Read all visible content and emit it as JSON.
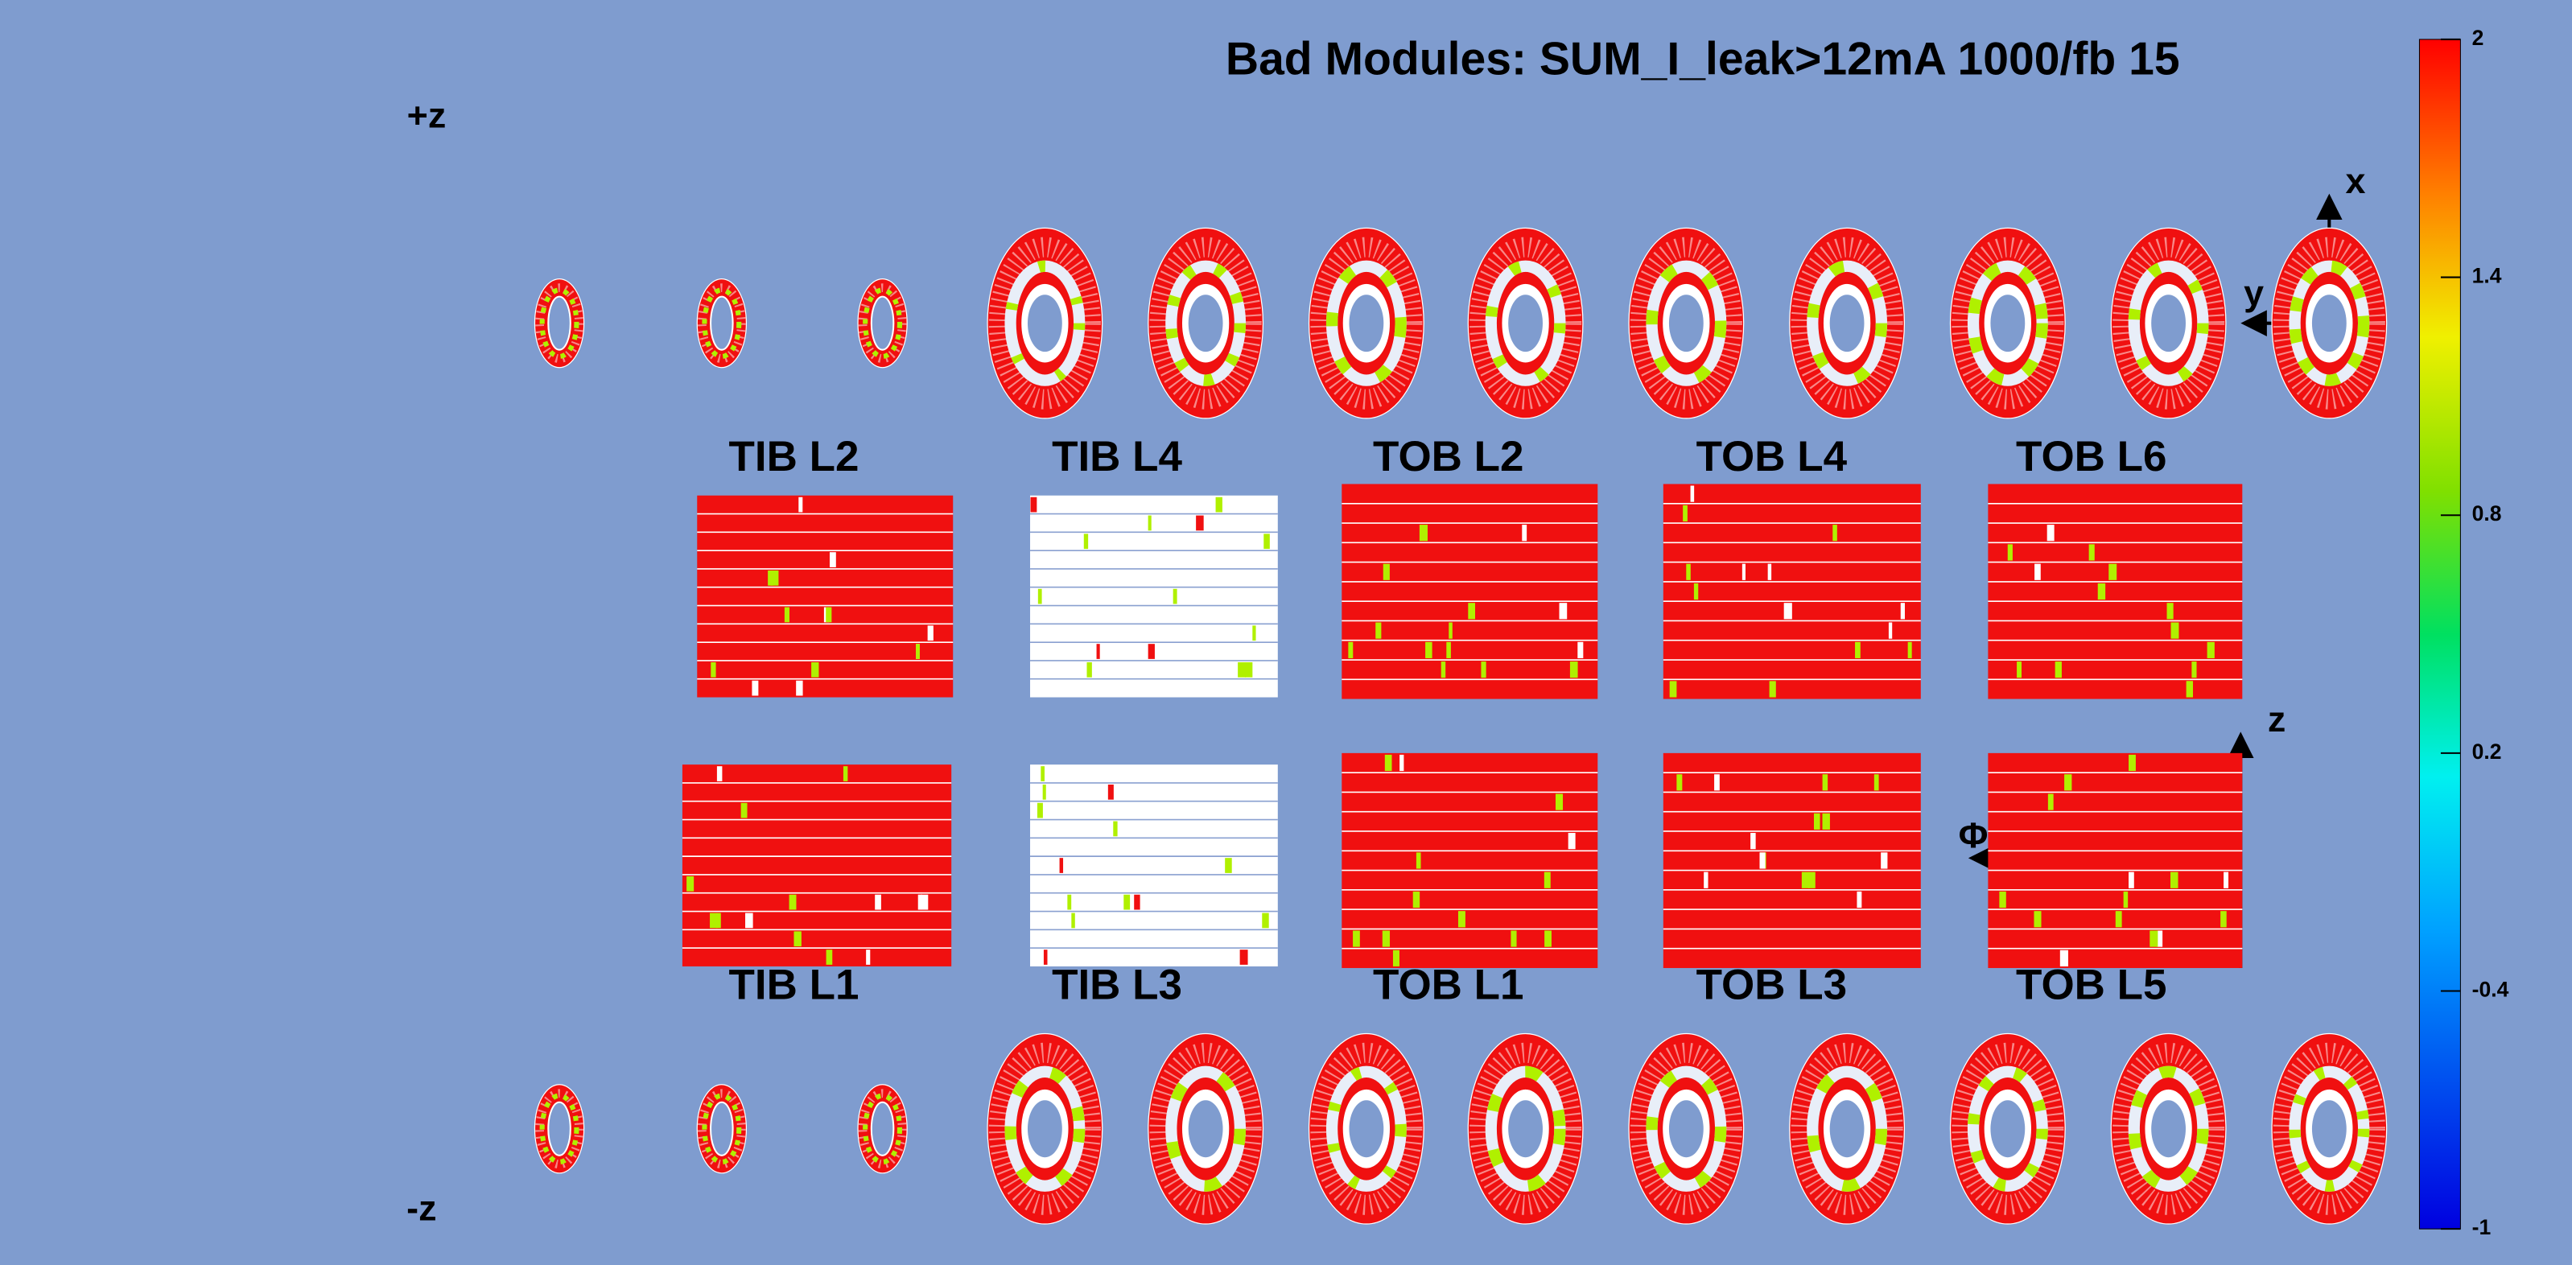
{
  "title": "Bad Modules: SUM_I_leak>12mA 1000/fb 15",
  "side_labels": {
    "plus_z": "+z",
    "minus_z": "-z"
  },
  "layer_labels_top": [
    "TIB L2",
    "TIB L4",
    "TOB L2",
    "TOB L4",
    "TOB L6"
  ],
  "layer_labels_bottom": [
    "TIB L1",
    "TIB L3",
    "TOB L1",
    "TOB L3",
    "TOB L5"
  ],
  "axis_labels": {
    "x": "x",
    "y": "y",
    "z": "z",
    "phi": "Φ"
  },
  "colorbar": {
    "min": -1,
    "max": 2,
    "ticks": [
      2,
      1.4,
      0.8,
      0.2,
      -0.4,
      -1
    ]
  }
}
